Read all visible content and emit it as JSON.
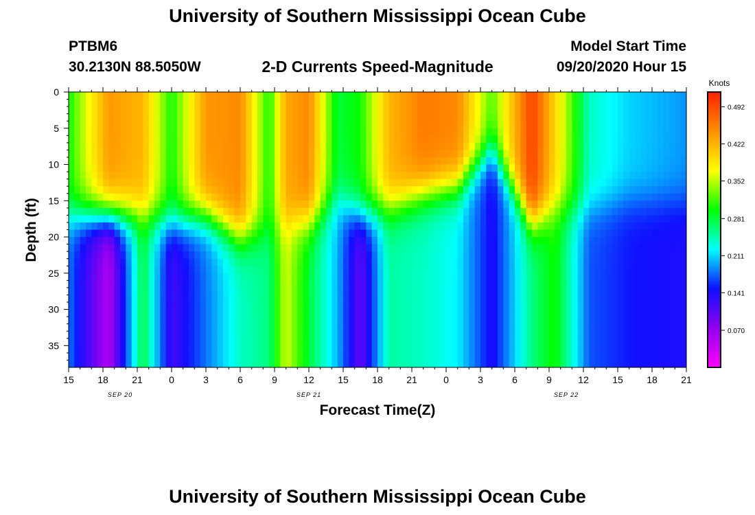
{
  "header": {
    "title": "University of Southern Mississippi Ocean Cube",
    "station_id": "PTBM6",
    "station_coords": "30.2130N 88.5050W",
    "plot_subtitle": "2-D Currents Speed-Magnitude",
    "model_start_label": "Model Start Time",
    "model_start_value": "09/20/2020 Hour 15"
  },
  "footer": {
    "title": "University of Southern Mississippi Ocean Cube"
  },
  "chart_data": {
    "type": "heatmap",
    "title": "2-D Currents Speed-Magnitude",
    "xlabel": "Forecast Time(Z)",
    "ylabel": "Depth (ft)",
    "units": "Knots",
    "x_hours_range": [
      0,
      54
    ],
    "ylim": [
      0,
      38
    ],
    "y_ticks": [
      0,
      5,
      10,
      15,
      20,
      25,
      30,
      35
    ],
    "x_tick_labels": [
      "15",
      "18",
      "21",
      "0",
      "3",
      "6",
      "9",
      "12",
      "15",
      "18",
      "21",
      "0",
      "3",
      "6",
      "9",
      "12",
      "15",
      "18",
      "21"
    ],
    "date_labels": [
      {
        "label": "SEP 20",
        "hour": 4.5
      },
      {
        "label": "SEP 21",
        "hour": 21
      },
      {
        "label": "SEP 22",
        "hour": 43.5
      }
    ],
    "colorbar": {
      "label": "Knots",
      "min": 0.0,
      "max": 0.52,
      "tick_values": [
        0.07,
        0.141,
        0.211,
        0.281,
        0.352,
        0.422,
        0.492
      ],
      "tick_labels": [
        "0.070",
        "0.141",
        "0.211",
        "0.281",
        "0.352",
        "0.422",
        "0.492"
      ],
      "colors": [
        "#ff00ff",
        "#9000f0",
        "#1010ff",
        "#00ffff",
        "#00ff00",
        "#ffff00",
        "#ff9000",
        "#ff2000"
      ]
    },
    "speed_profiles": [
      {
        "hour": 0,
        "surface": 0.3,
        "thermocline_ft": 17,
        "bottom": 0.18
      },
      {
        "hour": 3.5,
        "surface": 0.44,
        "thermocline_ft": 17,
        "bottom": 0.05
      },
      {
        "hour": 6.5,
        "surface": 0.42,
        "thermocline_ft": 17,
        "bottom": 0.28
      },
      {
        "hour": 9,
        "surface": 0.3,
        "thermocline_ft": 18,
        "bottom": 0.12
      },
      {
        "hour": 12,
        "surface": 0.44,
        "thermocline_ft": 17,
        "bottom": 0.18
      },
      {
        "hour": 15,
        "surface": 0.45,
        "thermocline_ft": 20,
        "bottom": 0.24
      },
      {
        "hour": 17.5,
        "surface": 0.3,
        "thermocline_ft": 19,
        "bottom": 0.26
      },
      {
        "hour": 19,
        "surface": 0.43,
        "thermocline_ft": 18,
        "bottom": 0.36
      },
      {
        "hour": 21,
        "surface": 0.45,
        "thermocline_ft": 18,
        "bottom": 0.28
      },
      {
        "hour": 23.5,
        "surface": 0.28,
        "thermocline_ft": 15,
        "bottom": 0.2
      },
      {
        "hour": 25.5,
        "surface": 0.3,
        "thermocline_ft": 17,
        "bottom": 0.1
      },
      {
        "hour": 28,
        "surface": 0.42,
        "thermocline_ft": 16,
        "bottom": 0.25
      },
      {
        "hour": 31,
        "surface": 0.46,
        "thermocline_ft": 14,
        "bottom": 0.24
      },
      {
        "hour": 34,
        "surface": 0.45,
        "thermocline_ft": 13,
        "bottom": 0.22
      },
      {
        "hour": 37,
        "surface": 0.32,
        "thermocline_ft": 8,
        "bottom": 0.14
      },
      {
        "hour": 40.5,
        "surface": 0.5,
        "thermocline_ft": 18,
        "bottom": 0.26
      },
      {
        "hour": 42.5,
        "surface": 0.4,
        "thermocline_ft": 16,
        "bottom": 0.3
      },
      {
        "hour": 45.5,
        "surface": 0.24,
        "thermocline_ft": 16,
        "bottom": 0.17
      },
      {
        "hour": 49,
        "surface": 0.21,
        "thermocline_ft": 15,
        "bottom": 0.15
      },
      {
        "hour": 54,
        "surface": 0.19,
        "thermocline_ft": 15,
        "bottom": 0.14
      }
    ]
  }
}
